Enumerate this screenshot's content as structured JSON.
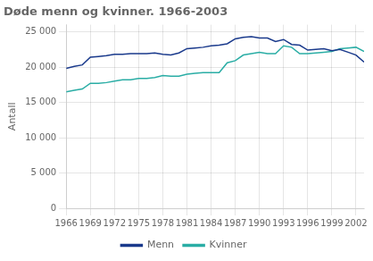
{
  "chart_data": {
    "type": "line",
    "title": "Døde menn og kvinner. 1966-2003",
    "ylabel": "Antall",
    "x": [
      1966,
      1967,
      1968,
      1969,
      1970,
      1971,
      1972,
      1973,
      1974,
      1975,
      1976,
      1977,
      1978,
      1979,
      1980,
      1981,
      1982,
      1983,
      1984,
      1985,
      1986,
      1987,
      1988,
      1989,
      1990,
      1991,
      1992,
      1993,
      1994,
      1995,
      1996,
      1997,
      1998,
      1999,
      2000,
      2001,
      2002,
      2003
    ],
    "series": [
      {
        "name": "Menn",
        "color": "#1a3a8c",
        "values": [
          19800,
          20100,
          20300,
          21400,
          21500,
          21600,
          21800,
          21800,
          21900,
          21900,
          21900,
          22000,
          21800,
          21700,
          22000,
          22600,
          22700,
          22800,
          23000,
          23100,
          23300,
          24000,
          24200,
          24300,
          24100,
          24100,
          23600,
          23900,
          23200,
          23100,
          22400,
          22500,
          22600,
          22300,
          22500,
          22100,
          21700,
          20700
        ]
      },
      {
        "name": "Kvinner",
        "color": "#2aada5",
        "values": [
          16500,
          16700,
          16900,
          17700,
          17700,
          17800,
          18000,
          18200,
          18200,
          18400,
          18400,
          18500,
          18800,
          18700,
          18700,
          19000,
          19100,
          19200,
          19200,
          19200,
          20600,
          20900,
          21700,
          21900,
          22100,
          21900,
          21900,
          23000,
          22800,
          21900,
          21900,
          22000,
          22100,
          22200,
          22600,
          22700,
          22800,
          22200
        ]
      }
    ],
    "xlim": [
      1966,
      2003
    ],
    "xticks": [
      1966,
      1969,
      1972,
      1975,
      1978,
      1981,
      1984,
      1987,
      1990,
      1993,
      1996,
      1999,
      2002
    ],
    "ylim": [
      0,
      26000
    ],
    "yticks": [
      0,
      {
        "value": 5000,
        "label": "5 000"
      },
      {
        "value": 10000,
        "label": "10 000"
      },
      {
        "value": 15000,
        "label": "15 000"
      },
      {
        "value": 20000,
        "label": "20 000"
      },
      {
        "value": 25000,
        "label": "25 000"
      }
    ],
    "grid": true,
    "legend": "bottom"
  }
}
